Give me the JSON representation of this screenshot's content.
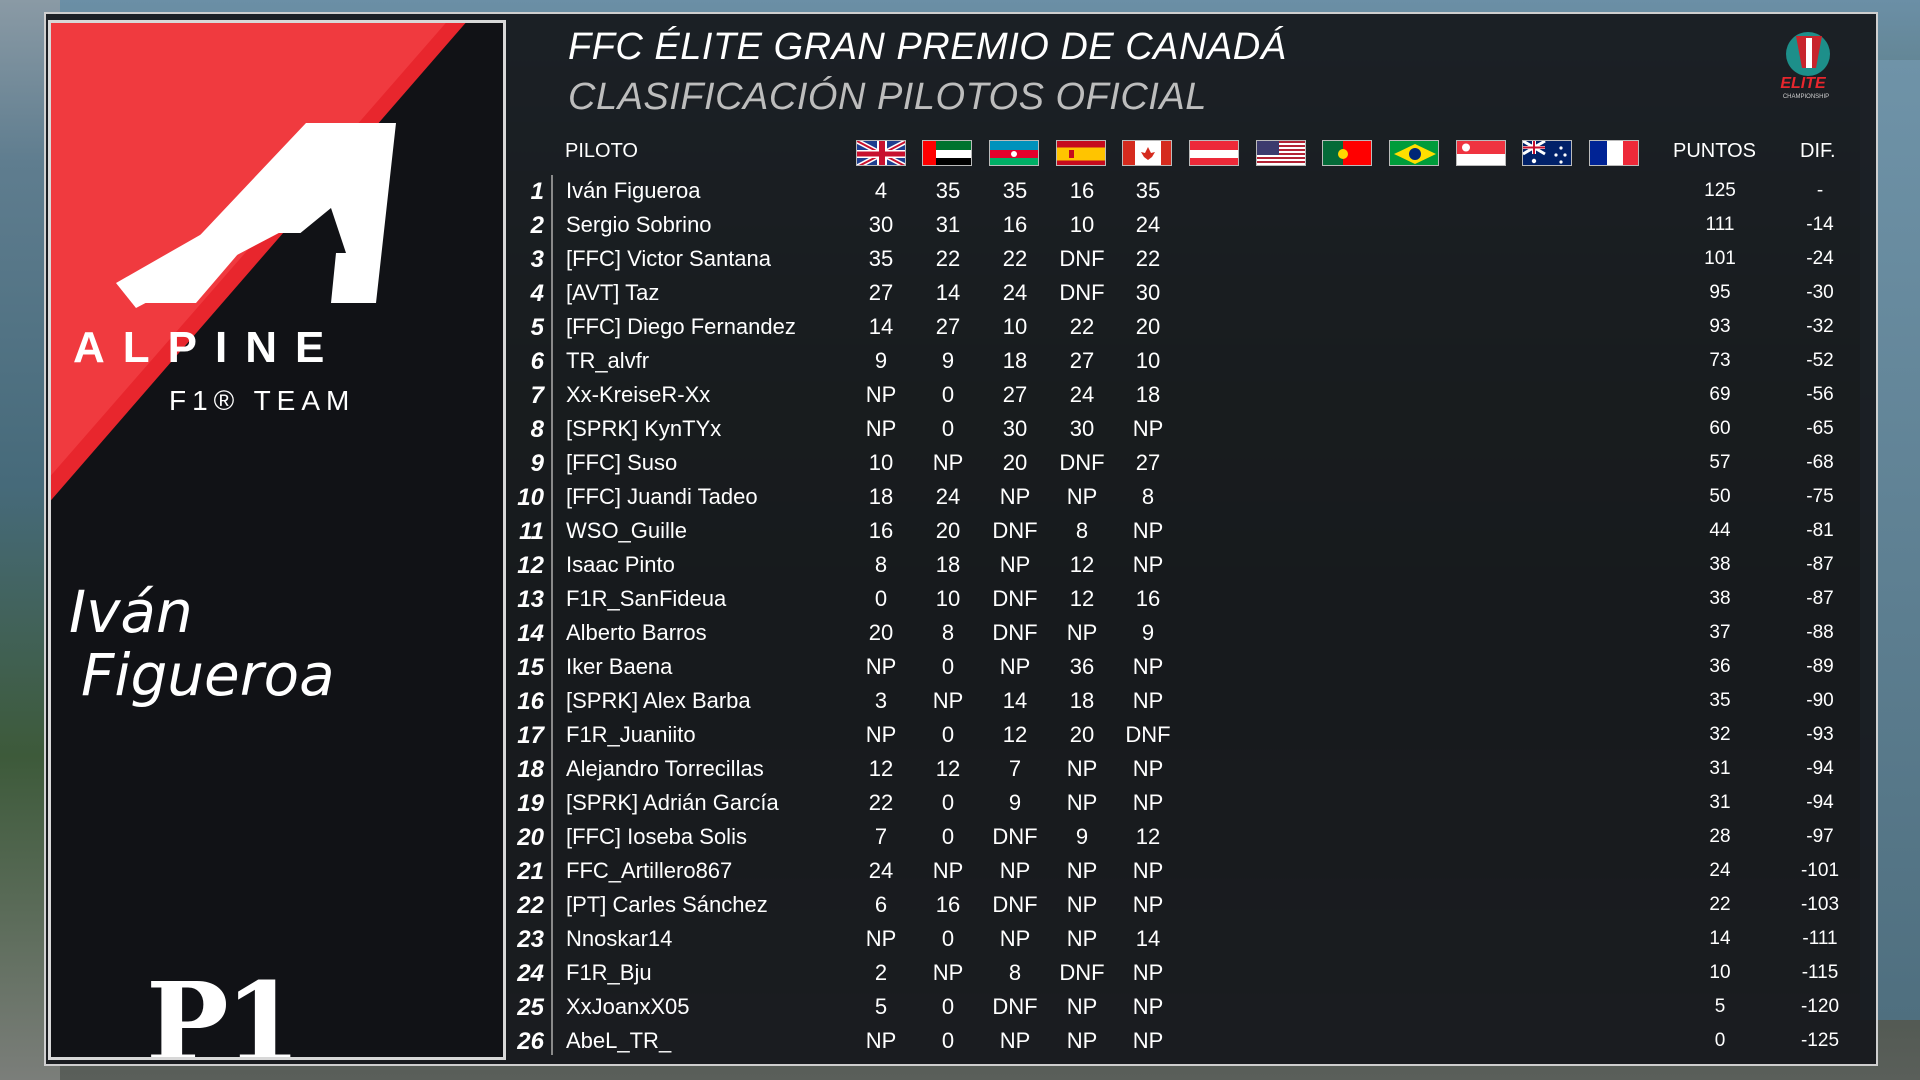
{
  "header": {
    "title": "FFC ÉLITE GRAN PREMIO DE CANADÁ",
    "subtitle": "CLASIFICACIÓN PILOTOS OFICIAL"
  },
  "logo": {
    "icon": "elite-championship-logo",
    "text": "ELITE",
    "subtext": "CHAMPIONSHIP"
  },
  "card": {
    "team_name": "ALPINE",
    "team_sub": "F1® TEAM",
    "driver_first": "Iván",
    "driver_last": "Figueroa",
    "position": "P1",
    "accent": "#e8262d"
  },
  "table": {
    "col_driver": "PILOTO",
    "col_points": "PUNTOS",
    "col_diff": "DIF.",
    "flags": [
      "flag-uk-icon",
      "flag-uae-icon",
      "flag-azerbaijan-icon",
      "flag-spain-icon",
      "flag-canada-icon",
      "flag-austria-icon",
      "flag-usa-icon",
      "flag-portugal-icon",
      "flag-brazil-icon",
      "flag-singapore-icon",
      "flag-australia-icon",
      "flag-france-icon"
    ],
    "rows": [
      {
        "pos": "1",
        "name": "Iván Figueroa",
        "r": [
          "4",
          "35",
          "35",
          "16",
          "35"
        ],
        "pts": "125",
        "dif": "-"
      },
      {
        "pos": "2",
        "name": "Sergio Sobrino",
        "r": [
          "30",
          "31",
          "16",
          "10",
          "24"
        ],
        "pts": "111",
        "dif": "-14"
      },
      {
        "pos": "3",
        "name": "[FFC] Victor Santana",
        "r": [
          "35",
          "22",
          "22",
          "DNF",
          "22"
        ],
        "pts": "101",
        "dif": "-24"
      },
      {
        "pos": "4",
        "name": "[AVT] Taz",
        "r": [
          "27",
          "14",
          "24",
          "DNF",
          "30"
        ],
        "pts": "95",
        "dif": "-30"
      },
      {
        "pos": "5",
        "name": "[FFC] Diego Fernandez",
        "r": [
          "14",
          "27",
          "10",
          "22",
          "20"
        ],
        "pts": "93",
        "dif": "-32"
      },
      {
        "pos": "6",
        "name": "TR_alvfr",
        "r": [
          "9",
          "9",
          "18",
          "27",
          "10"
        ],
        "pts": "73",
        "dif": "-52"
      },
      {
        "pos": "7",
        "name": "Xx-KreiseR-Xx",
        "r": [
          "NP",
          "0",
          "27",
          "24",
          "18"
        ],
        "pts": "69",
        "dif": "-56"
      },
      {
        "pos": "8",
        "name": "[SPRK] KynTYx",
        "r": [
          "NP",
          "0",
          "30",
          "30",
          "NP"
        ],
        "pts": "60",
        "dif": "-65"
      },
      {
        "pos": "9",
        "name": "[FFC] Suso",
        "r": [
          "10",
          "NP",
          "20",
          "DNF",
          "27"
        ],
        "pts": "57",
        "dif": "-68"
      },
      {
        "pos": "10",
        "name": "[FFC] Juandi Tadeo",
        "r": [
          "18",
          "24",
          "NP",
          "NP",
          "8"
        ],
        "pts": "50",
        "dif": "-75"
      },
      {
        "pos": "11",
        "name": "WSO_Guille",
        "r": [
          "16",
          "20",
          "DNF",
          "8",
          "NP"
        ],
        "pts": "44",
        "dif": "-81"
      },
      {
        "pos": "12",
        "name": "Isaac Pinto",
        "r": [
          "8",
          "18",
          "NP",
          "12",
          "NP"
        ],
        "pts": "38",
        "dif": "-87"
      },
      {
        "pos": "13",
        "name": "F1R_SanFideua",
        "r": [
          "0",
          "10",
          "DNF",
          "12",
          "16"
        ],
        "pts": "38",
        "dif": "-87"
      },
      {
        "pos": "14",
        "name": "Alberto Barros",
        "r": [
          "20",
          "8",
          "DNF",
          "NP",
          "9"
        ],
        "pts": "37",
        "dif": "-88"
      },
      {
        "pos": "15",
        "name": "Iker Baena",
        "r": [
          "NP",
          "0",
          "NP",
          "36",
          "NP"
        ],
        "pts": "36",
        "dif": "-89"
      },
      {
        "pos": "16",
        "name": "[SPRK] Alex Barba",
        "r": [
          "3",
          "NP",
          "14",
          "18",
          "NP"
        ],
        "pts": "35",
        "dif": "-90"
      },
      {
        "pos": "17",
        "name": "F1R_Juaniito",
        "r": [
          "NP",
          "0",
          "12",
          "20",
          "DNF"
        ],
        "pts": "32",
        "dif": "-93"
      },
      {
        "pos": "18",
        "name": "Alejandro Torrecillas",
        "r": [
          "12",
          "12",
          "7",
          "NP",
          "NP"
        ],
        "pts": "31",
        "dif": "-94"
      },
      {
        "pos": "19",
        "name": "[SPRK] Adrián García",
        "r": [
          "22",
          "0",
          "9",
          "NP",
          "NP"
        ],
        "pts": "31",
        "dif": "-94"
      },
      {
        "pos": "20",
        "name": "[FFC] Ioseba Solis",
        "r": [
          "7",
          "0",
          "DNF",
          "9",
          "12"
        ],
        "pts": "28",
        "dif": "-97"
      },
      {
        "pos": "21",
        "name": "FFC_Artillero867",
        "r": [
          "24",
          "NP",
          "NP",
          "NP",
          "NP"
        ],
        "pts": "24",
        "dif": "-101"
      },
      {
        "pos": "22",
        "name": "[PT] Carles Sánchez",
        "r": [
          "6",
          "16",
          "DNF",
          "NP",
          "NP"
        ],
        "pts": "22",
        "dif": "-103"
      },
      {
        "pos": "23",
        "name": "Nnoskar14",
        "r": [
          "NP",
          "0",
          "NP",
          "NP",
          "14"
        ],
        "pts": "14",
        "dif": "-111"
      },
      {
        "pos": "24",
        "name": "F1R_Bju",
        "r": [
          "2",
          "NP",
          "8",
          "DNF",
          "NP"
        ],
        "pts": "10",
        "dif": "-115"
      },
      {
        "pos": "25",
        "name": "XxJoanxX05",
        "r": [
          "5",
          "0",
          "DNF",
          "NP",
          "NP"
        ],
        "pts": "5",
        "dif": "-120"
      },
      {
        "pos": "26",
        "name": "AbeL_TR_",
        "r": [
          "NP",
          "0",
          "NP",
          "NP",
          "NP"
        ],
        "pts": "0",
        "dif": "-125"
      }
    ]
  }
}
